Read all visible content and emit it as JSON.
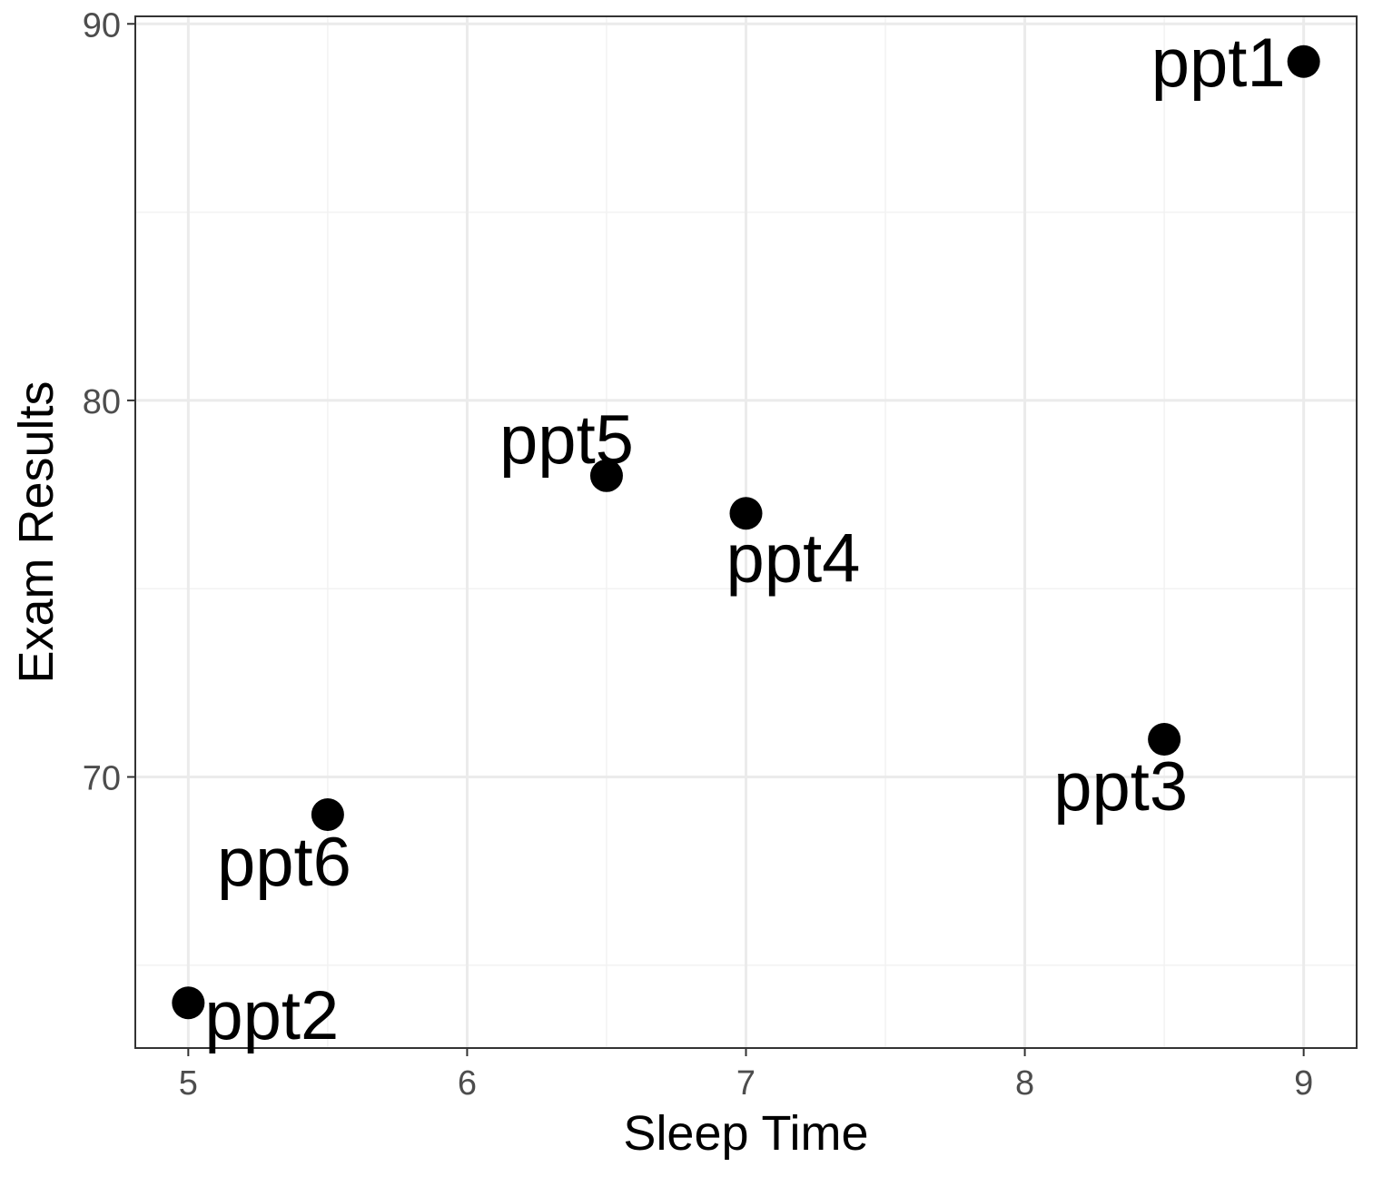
{
  "chart_data": {
    "type": "scatter",
    "xlabel": "Sleep Time",
    "ylabel": "Exam Results",
    "xlim": [
      4.81,
      9.19
    ],
    "ylim": [
      62.8,
      90.2
    ],
    "xticks": [
      5,
      6,
      7,
      8,
      9
    ],
    "yticks": [
      70,
      80,
      90
    ],
    "grid": true,
    "points": [
      {
        "label": "ppt1",
        "x": 9.0,
        "y": 89.0,
        "label_position": "left"
      },
      {
        "label": "ppt2",
        "x": 5.0,
        "y": 64.0,
        "label_position": "right"
      },
      {
        "label": "ppt3",
        "x": 8.5,
        "y": 71.0,
        "label_position": "below-left"
      },
      {
        "label": "ppt4",
        "x": 7.0,
        "y": 77.0,
        "label_position": "below-right"
      },
      {
        "label": "ppt5",
        "x": 6.5,
        "y": 78.0,
        "label_position": "above-left"
      },
      {
        "label": "ppt6",
        "x": 5.5,
        "y": 69.0,
        "label_position": "below-left"
      }
    ],
    "colors": {
      "point": "#000000",
      "grid_major": "#ebebeb",
      "grid_minor": "#f2f2f2",
      "panel_border": "#333333",
      "tick_text": "#4d4d4d"
    }
  }
}
